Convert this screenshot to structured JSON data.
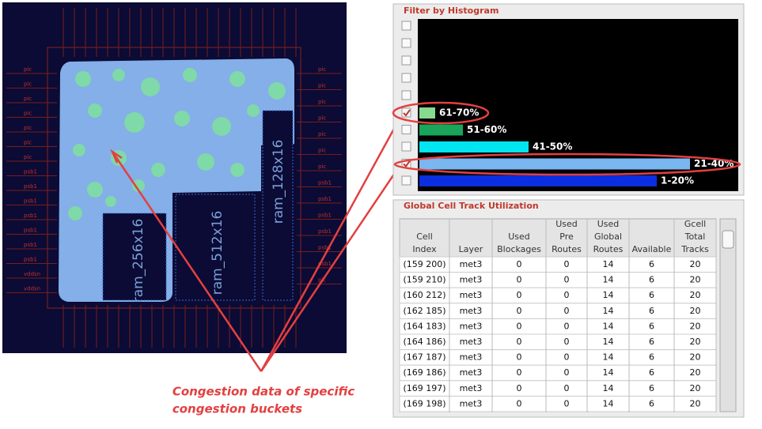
{
  "layout": {
    "macros": [
      "ram_256x16",
      "ram_512x16",
      "ram_128x16"
    ],
    "pins_left": [
      "pic",
      "pic",
      "pic",
      "pic",
      "pic",
      "pic",
      "pic",
      "psb1",
      "psb1",
      "psb1",
      "psb1",
      "psb1",
      "psb1",
      "psb1",
      "vddsn",
      "vddsn"
    ],
    "pins_right": [
      "pic",
      "pic",
      "pic",
      "pic",
      "pic",
      "pic",
      "pic",
      "psb1",
      "psb1",
      "psb1",
      "psb1",
      "psb1",
      "psb1",
      "pic"
    ]
  },
  "annotation": {
    "lines": [
      "Congestion data of specific",
      "congestion buckets"
    ]
  },
  "histogram": {
    "title": "Filter by Histogram",
    "rows": [
      {
        "label": "61-70%",
        "checked": true,
        "color": "#86d98f"
      },
      {
        "label": "51-60%",
        "checked": false,
        "color": "#19a65a"
      },
      {
        "label": "41-50%",
        "checked": false,
        "color": "#00e5f0"
      },
      {
        "label": "21-40%",
        "checked": true,
        "color": "#7ab6f0"
      },
      {
        "label": "1-20%",
        "checked": false,
        "color": "#0a2ee0"
      }
    ]
  },
  "table": {
    "title": "Global Cell Track Utilization",
    "header": [
      [
        "Cell",
        "Index"
      ],
      [
        "Layer"
      ],
      [
        "Used",
        "Blockages"
      ],
      [
        "Used",
        "Pre",
        "Routes"
      ],
      [
        "Used",
        "Global",
        "Routes"
      ],
      [
        "Available"
      ],
      [
        "Gcell",
        "Total",
        "Tracks"
      ]
    ],
    "rows": [
      [
        "(159 200)",
        "met3",
        0,
        0,
        14,
        6,
        20
      ],
      [
        "(159 210)",
        "met3",
        0,
        0,
        14,
        6,
        20
      ],
      [
        "(160 212)",
        "met3",
        0,
        0,
        14,
        6,
        20
      ],
      [
        "(162 185)",
        "met3",
        0,
        0,
        14,
        6,
        20
      ],
      [
        "(164 183)",
        "met3",
        0,
        0,
        14,
        6,
        20
      ],
      [
        "(164 186)",
        "met3",
        0,
        0,
        14,
        6,
        20
      ],
      [
        "(167 187)",
        "met3",
        0,
        0,
        14,
        6,
        20
      ],
      [
        "(169 186)",
        "met3",
        0,
        0,
        14,
        6,
        20
      ],
      [
        "(169 197)",
        "met3",
        0,
        0,
        14,
        6,
        20
      ],
      [
        "(169 198)",
        "met3",
        0,
        0,
        14,
        6,
        20
      ]
    ]
  }
}
